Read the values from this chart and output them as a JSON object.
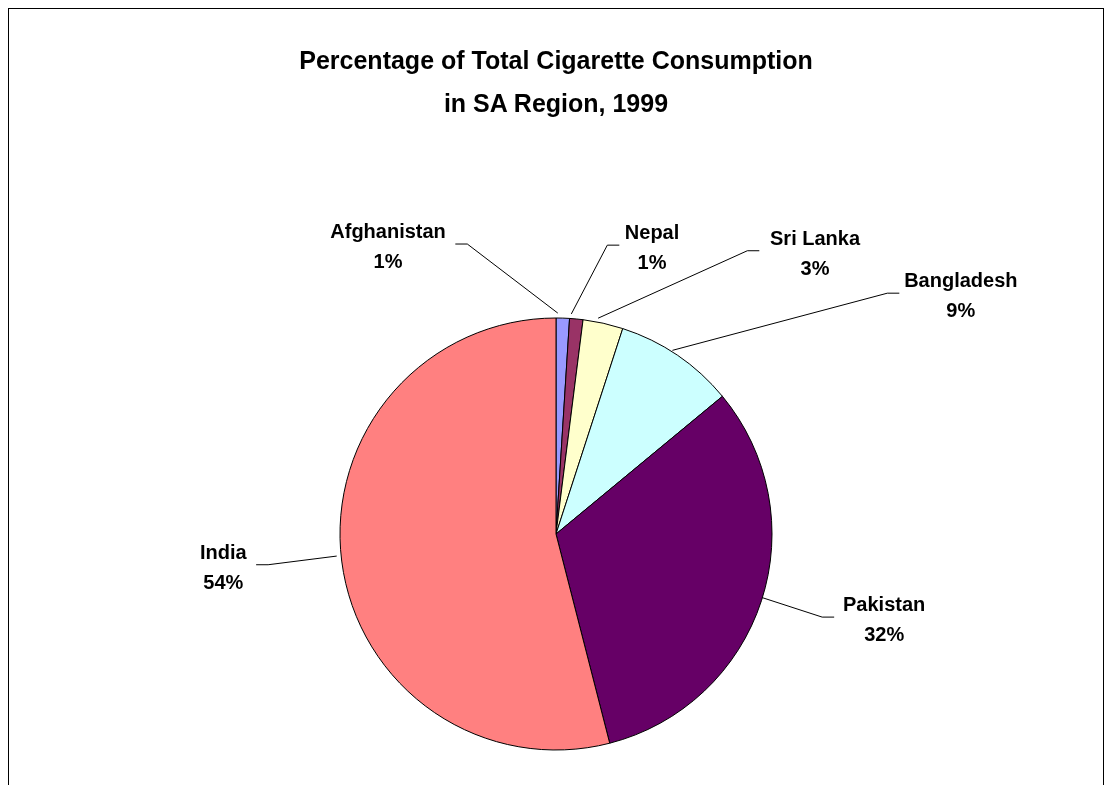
{
  "chart_data": {
    "type": "pie",
    "title": "Percentage of Total Cigarette Consumption\nin SA Region, 1999",
    "categories": [
      "Afghanistan",
      "Nepal",
      "Sri Lanka",
      "Bangladesh",
      "Pakistan",
      "India"
    ],
    "values": [
      1,
      1,
      3,
      9,
      32,
      54
    ],
    "colors": [
      "#9999ff",
      "#993366",
      "#ffffcc",
      "#ccffff",
      "#660066",
      "#ff8080"
    ],
    "value_labels": [
      "1%",
      "1%",
      "3%",
      "9%",
      "32%",
      "54%"
    ]
  }
}
